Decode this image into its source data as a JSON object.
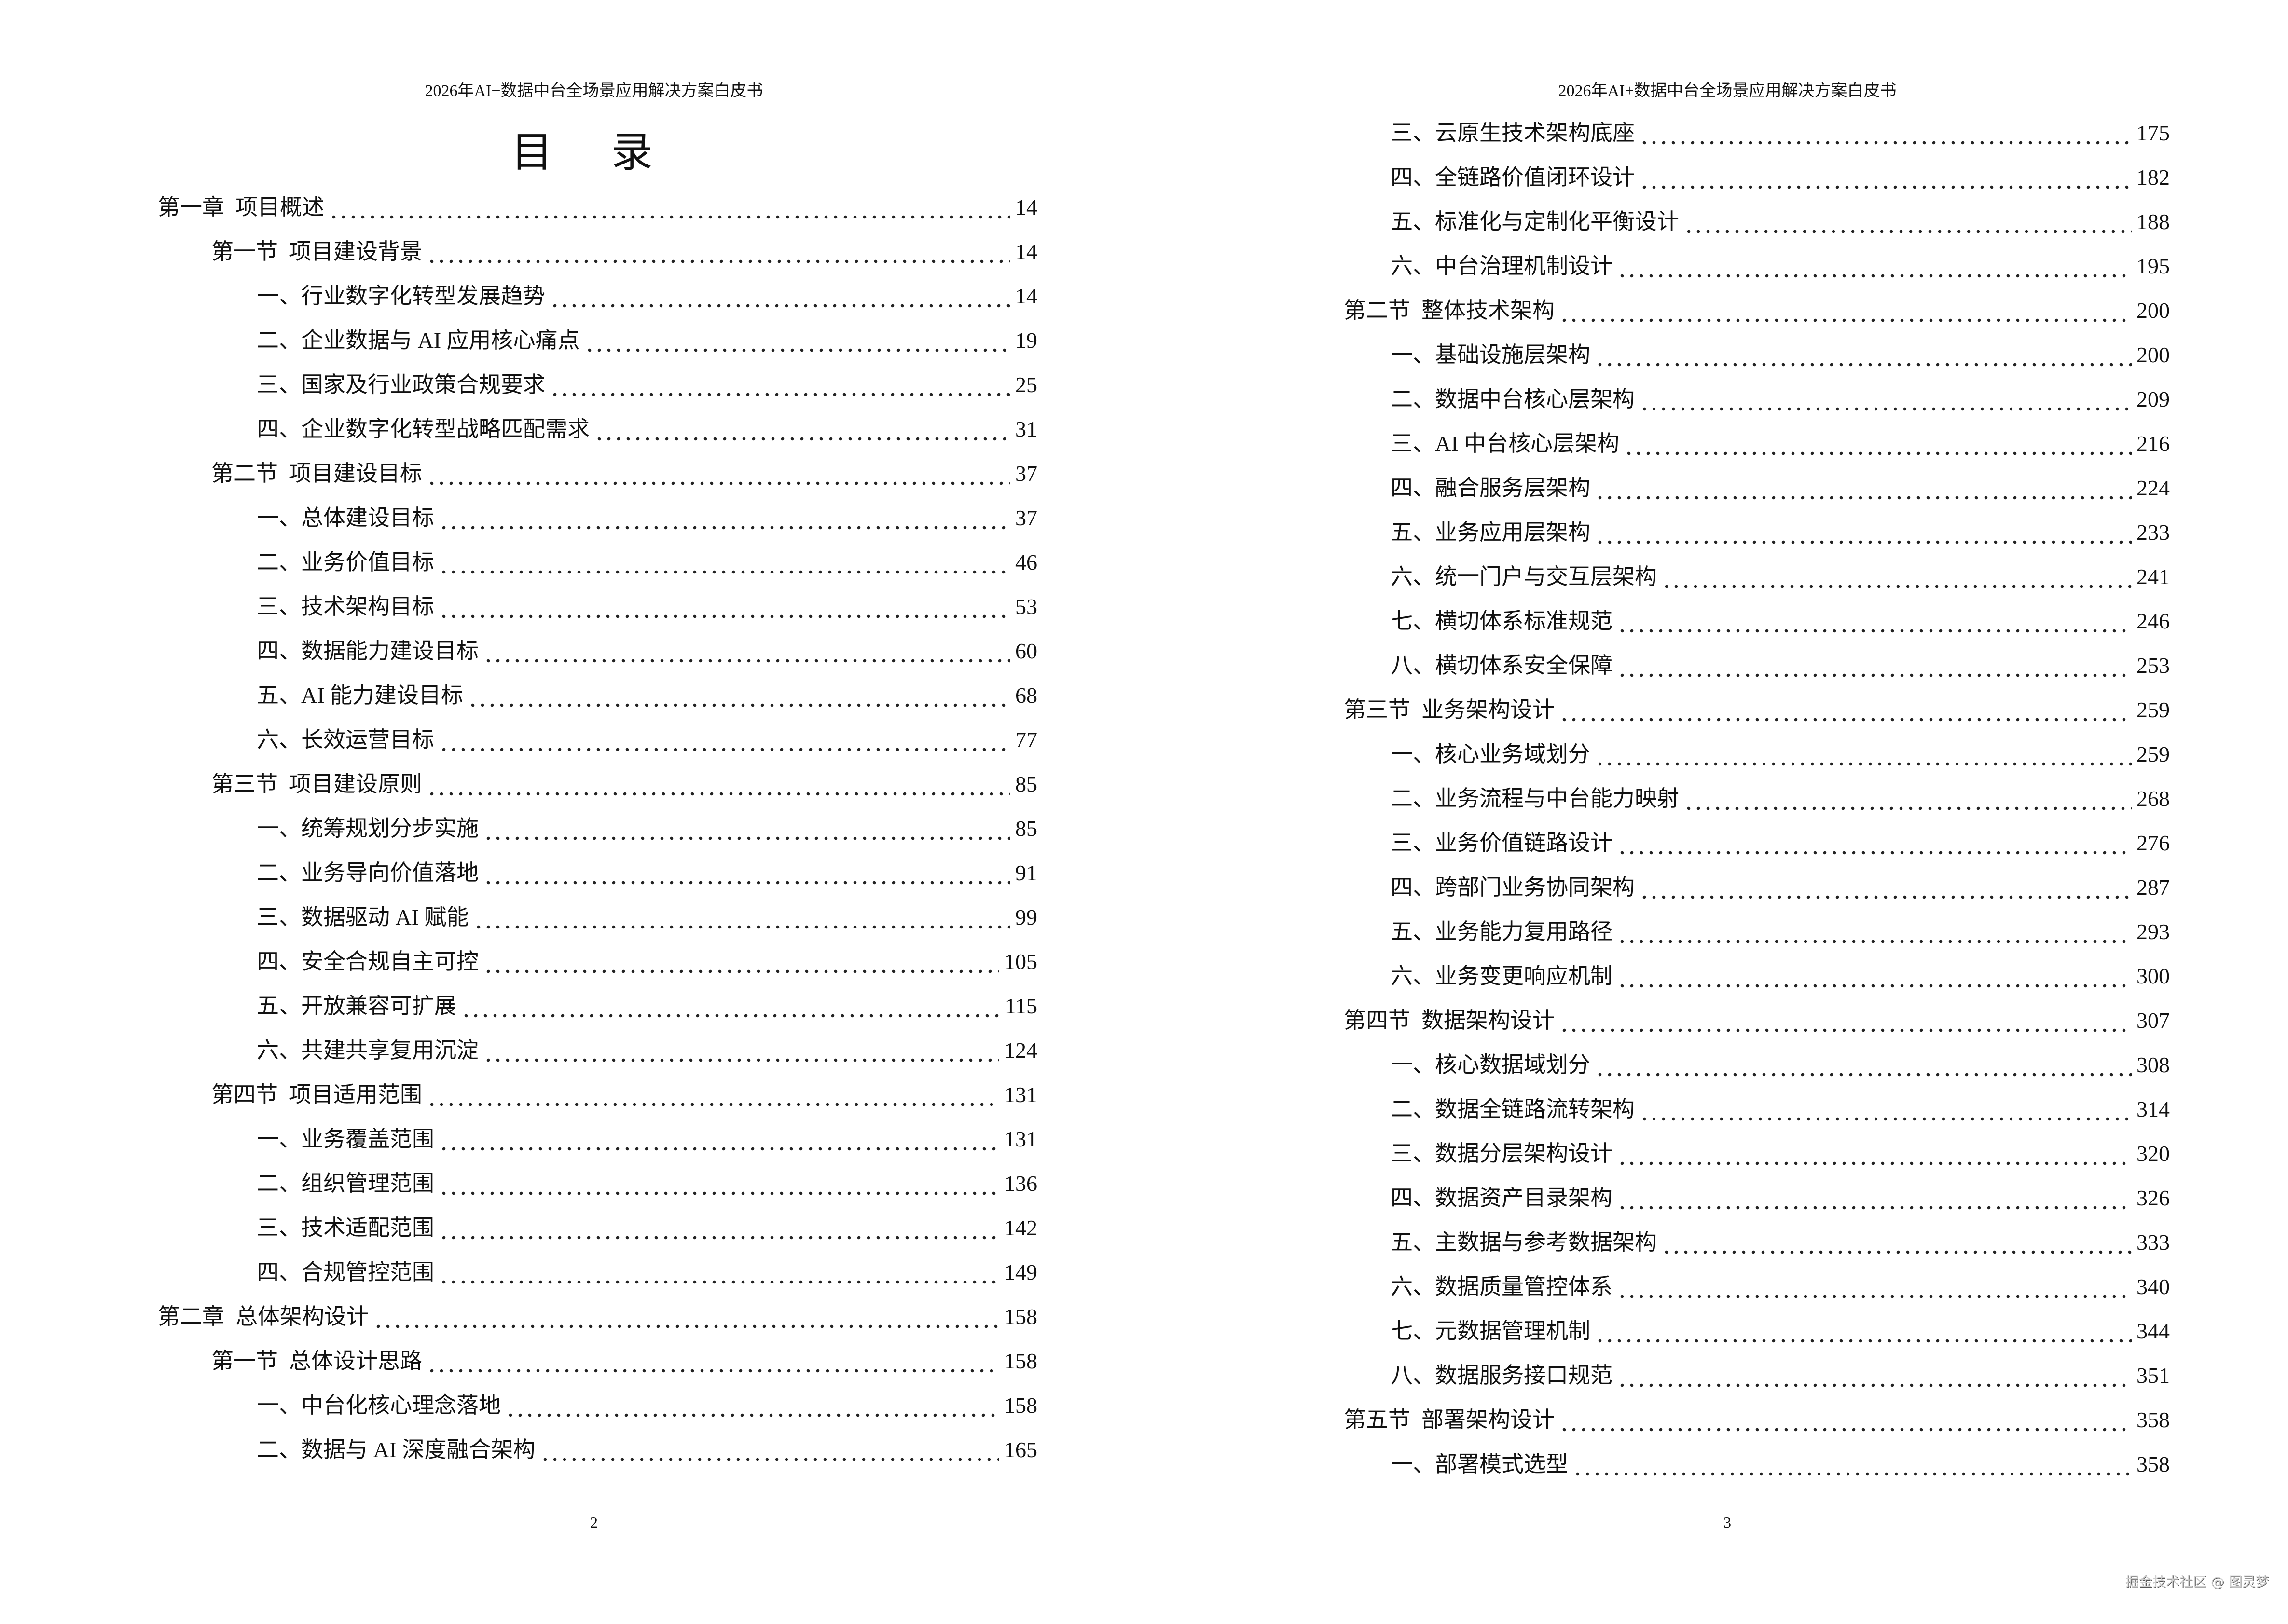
{
  "left_page": {
    "header": "2026年AI+数据中台全场景应用解决方案白皮书",
    "title": "目 录",
    "page_number": "2",
    "entries": [
      {
        "level": 1,
        "label": "第一章  项目概述",
        "page": "14"
      },
      {
        "level": 2,
        "label": "第一节  项目建设背景",
        "page": "14"
      },
      {
        "level": 3,
        "label": "一、行业数字化转型发展趋势",
        "page": "14"
      },
      {
        "level": 3,
        "label": "二、企业数据与 AI 应用核心痛点",
        "page": "19"
      },
      {
        "level": 3,
        "label": "三、国家及行业政策合规要求",
        "page": "25"
      },
      {
        "level": 3,
        "label": "四、企业数字化转型战略匹配需求",
        "page": "31"
      },
      {
        "level": 2,
        "label": "第二节  项目建设目标",
        "page": "37"
      },
      {
        "level": 3,
        "label": "一、总体建设目标",
        "page": "37"
      },
      {
        "level": 3,
        "label": "二、业务价值目标",
        "page": "46"
      },
      {
        "level": 3,
        "label": "三、技术架构目标",
        "page": "53"
      },
      {
        "level": 3,
        "label": "四、数据能力建设目标",
        "page": "60"
      },
      {
        "level": 3,
        "label": "五、AI 能力建设目标",
        "page": "68"
      },
      {
        "level": 3,
        "label": "六、长效运营目标",
        "page": "77"
      },
      {
        "level": 2,
        "label": "第三节  项目建设原则",
        "page": "85"
      },
      {
        "level": 3,
        "label": "一、统筹规划分步实施",
        "page": "85"
      },
      {
        "level": 3,
        "label": "二、业务导向价值落地",
        "page": "91"
      },
      {
        "level": 3,
        "label": "三、数据驱动 AI 赋能",
        "page": "99"
      },
      {
        "level": 3,
        "label": "四、安全合规自主可控",
        "page": "105"
      },
      {
        "level": 3,
        "label": "五、开放兼容可扩展",
        "page": "115"
      },
      {
        "level": 3,
        "label": "六、共建共享复用沉淀",
        "page": "124"
      },
      {
        "level": 2,
        "label": "第四节  项目适用范围",
        "page": "131"
      },
      {
        "level": 3,
        "label": "一、业务覆盖范围",
        "page": "131"
      },
      {
        "level": 3,
        "label": "二、组织管理范围",
        "page": "136"
      },
      {
        "level": 3,
        "label": "三、技术适配范围",
        "page": "142"
      },
      {
        "level": 3,
        "label": "四、合规管控范围",
        "page": "149"
      },
      {
        "level": 1,
        "label": "第二章  总体架构设计",
        "page": "158"
      },
      {
        "level": 2,
        "label": "第一节  总体设计思路",
        "page": "158"
      },
      {
        "level": 3,
        "label": "一、中台化核心理念落地",
        "page": "158"
      },
      {
        "level": 3,
        "label": "二、数据与 AI 深度融合架构",
        "page": "165"
      }
    ]
  },
  "right_page": {
    "header": "2026年AI+数据中台全场景应用解决方案白皮书",
    "page_number": "3",
    "entries": [
      {
        "level": 3,
        "label": "三、云原生技术架构底座",
        "page": "175"
      },
      {
        "level": 3,
        "label": "四、全链路价值闭环设计",
        "page": "182"
      },
      {
        "level": 3,
        "label": "五、标准化与定制化平衡设计",
        "page": "188"
      },
      {
        "level": 3,
        "label": "六、中台治理机制设计",
        "page": "195"
      },
      {
        "level": 2,
        "label": "第二节  整体技术架构",
        "page": "200"
      },
      {
        "level": 3,
        "label": "一、基础设施层架构",
        "page": "200"
      },
      {
        "level": 3,
        "label": "二、数据中台核心层架构",
        "page": "209"
      },
      {
        "level": 3,
        "label": "三、AI 中台核心层架构",
        "page": "216"
      },
      {
        "level": 3,
        "label": "四、融合服务层架构",
        "page": "224"
      },
      {
        "level": 3,
        "label": "五、业务应用层架构",
        "page": "233"
      },
      {
        "level": 3,
        "label": "六、统一门户与交互层架构",
        "page": "241"
      },
      {
        "level": 3,
        "label": "七、横切体系标准规范",
        "page": "246"
      },
      {
        "level": 3,
        "label": "八、横切体系安全保障",
        "page": "253"
      },
      {
        "level": 2,
        "label": "第三节  业务架构设计",
        "page": "259"
      },
      {
        "level": 3,
        "label": "一、核心业务域划分",
        "page": "259"
      },
      {
        "level": 3,
        "label": "二、业务流程与中台能力映射",
        "page": "268"
      },
      {
        "level": 3,
        "label": "三、业务价值链路设计",
        "page": "276"
      },
      {
        "level": 3,
        "label": "四、跨部门业务协同架构",
        "page": "287"
      },
      {
        "level": 3,
        "label": "五、业务能力复用路径",
        "page": "293"
      },
      {
        "level": 3,
        "label": "六、业务变更响应机制",
        "page": "300"
      },
      {
        "level": 2,
        "label": "第四节  数据架构设计",
        "page": "307"
      },
      {
        "level": 3,
        "label": "一、核心数据域划分",
        "page": "308"
      },
      {
        "level": 3,
        "label": "二、数据全链路流转架构",
        "page": "314"
      },
      {
        "level": 3,
        "label": "三、数据分层架构设计",
        "page": "320"
      },
      {
        "level": 3,
        "label": "四、数据资产目录架构",
        "page": "326"
      },
      {
        "level": 3,
        "label": "五、主数据与参考数据架构",
        "page": "333"
      },
      {
        "level": 3,
        "label": "六、数据质量管控体系",
        "page": "340"
      },
      {
        "level": 3,
        "label": "七、元数据管理机制",
        "page": "344"
      },
      {
        "level": 3,
        "label": "八、数据服务接口规范",
        "page": "351"
      },
      {
        "level": 2,
        "label": "第五节  部署架构设计",
        "page": "358"
      },
      {
        "level": 3,
        "label": "一、部署模式选型",
        "page": "358"
      }
    ]
  },
  "watermark": "掘金技术社区 @ 图灵梦"
}
